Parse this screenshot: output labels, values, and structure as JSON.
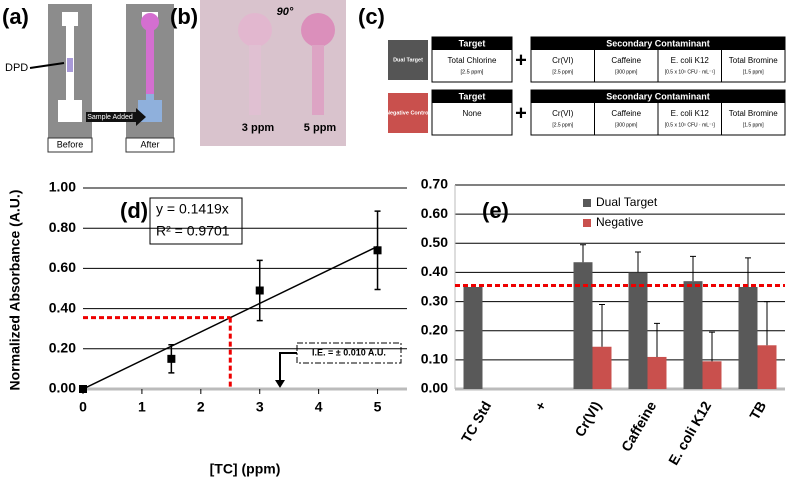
{
  "panel_a": {
    "label": "(a)",
    "pointer": "DPD",
    "arrow_text": "Sample Added",
    "before": "Before",
    "after": "After"
  },
  "panel_b": {
    "label": "(b)",
    "angle": "90°",
    "left": "3 ppm",
    "right": "5 ppm"
  },
  "panel_c": {
    "label": "(c)",
    "groups": [
      {
        "name": "Dual Target",
        "color": "#555555",
        "target_header": "Target",
        "target": "Total Chlorine",
        "target_conc": "[2.5 ppm]",
        "plus": "+",
        "secondary_header": "Secondary Contaminant",
        "secondary": [
          {
            "name": "Cr(VI)",
            "conc": "[2.5 ppm]"
          },
          {
            "name": "Caffeine",
            "conc": "[300 ppm]"
          },
          {
            "name": "E. coli K12",
            "conc": "[0.5 x 10⁵ CFU · mL⁻¹]"
          },
          {
            "name": "Total Bromine",
            "conc": "[1.5 ppm]"
          }
        ]
      },
      {
        "name": "Negative Control",
        "color": "#c9504d",
        "target_header": "Target",
        "target": "None",
        "plus": "+",
        "secondary_header": "Secondary Contaminant",
        "secondary": [
          {
            "name": "Cr(VI)",
            "conc": "[2.5 ppm]"
          },
          {
            "name": "Caffeine",
            "conc": "[300 ppm]"
          },
          {
            "name": "E. coli K12",
            "conc": "[0.5 x 10⁵ CFU · mL⁻¹]"
          },
          {
            "name": "Total Bromine",
            "conc": "[1.5 ppm]"
          }
        ]
      }
    ]
  },
  "chart_data": [
    {
      "type": "scatter",
      "panel_label": "(d)",
      "x_label": "[TC] (ppm)",
      "y_label": "Normalized Absorbance (A.U.)",
      "x": [
        0,
        1.5,
        3,
        5
      ],
      "values": [
        0,
        0.15,
        0.49,
        0.69
      ],
      "errors": [
        0,
        0.07,
        0.15,
        0.195
      ],
      "color": "#000000",
      "fit": {
        "slope": 0.1419,
        "equation": "y = 0.1419x",
        "r2": "R² = 0.9701"
      },
      "threshold": {
        "x": 2.5,
        "y": 0.355
      },
      "annotation": "I.E. = ± 0.010 A.U.",
      "xlim": [
        0,
        5.5
      ],
      "xticks": [
        0,
        1,
        2,
        3,
        4,
        5
      ],
      "ylim": [
        0,
        1
      ],
      "yticks": [
        {
          "value": 0,
          "label": "0.00"
        },
        {
          "value": 0.2,
          "label": "0.20"
        },
        {
          "value": 0.4,
          "label": "0.40"
        },
        {
          "value": 0.6,
          "label": "0.60"
        },
        {
          "value": 0.8,
          "label": "0.80"
        },
        {
          "value": 1,
          "label": "1.00"
        }
      ],
      "grid": true
    },
    {
      "type": "bar",
      "panel_label": "(e)",
      "categories": [
        "TC Std",
        "+",
        "Cr(VI)",
        "Caffeine",
        "E. coli K12",
        "TB"
      ],
      "series": [
        {
          "name": "Dual Target",
          "color": "#595959",
          "values": [
            0.35,
            null,
            0.435,
            0.4,
            0.37,
            0.35
          ],
          "errors": [
            null,
            null,
            0.06,
            0.07,
            0.085,
            0.1
          ]
        },
        {
          "name": "Negative",
          "color": "#c9504d",
          "values": [
            null,
            null,
            0.145,
            0.11,
            0.095,
            0.15
          ],
          "errors": [
            null,
            null,
            0.145,
            0.115,
            0.1,
            0.15
          ]
        }
      ],
      "threshold": 0.355,
      "ylim": [
        0,
        0.7
      ],
      "yticks": [
        {
          "value": 0,
          "label": "0.00"
        },
        {
          "value": 0.1,
          "label": "0.10"
        },
        {
          "value": 0.2,
          "label": "0.20"
        },
        {
          "value": 0.3,
          "label": "0.30"
        },
        {
          "value": 0.4,
          "label": "0.40"
        },
        {
          "value": 0.5,
          "label": "0.50"
        },
        {
          "value": 0.6,
          "label": "0.60"
        },
        {
          "value": 0.7,
          "label": "0.70"
        }
      ],
      "grid": true
    }
  ]
}
